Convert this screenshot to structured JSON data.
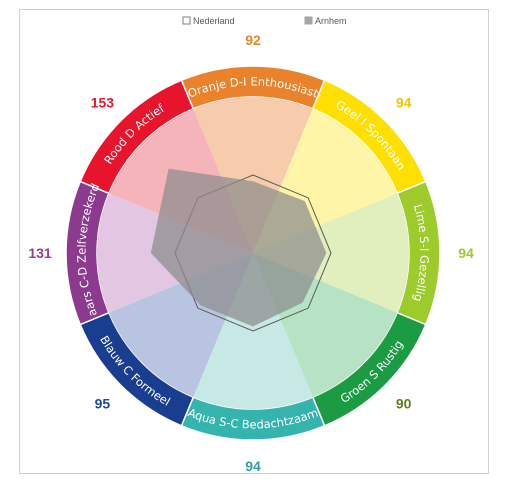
{
  "chart_data": {
    "type": "radar",
    "legend": [
      {
        "name": "Nederland",
        "marker": "outline-square"
      },
      {
        "name": "Arnhem",
        "marker": "gray-square"
      }
    ],
    "legend_position": "top",
    "categories": [
      {
        "label": "Oranje D-I Enthousiast",
        "color": "#E9822A",
        "light": "#F6CCAD",
        "value_color": "#E9822A"
      },
      {
        "label": "Geel I Spontaan",
        "color": "#FFDF00",
        "light": "#FFF5A8",
        "value_color": "#F4C300"
      },
      {
        "label": "Lime S-I Gezellig",
        "color": "#9CCB2B",
        "light": "#E1EEBD",
        "value_color": "#9CCB2B"
      },
      {
        "label": "Groen S Rustig",
        "color": "#1B9C43",
        "light": "#B5E3C4",
        "value_color": "#5E7D1F"
      },
      {
        "label": "Aqua S-C Bedachtzaam",
        "color": "#35B4AE",
        "light": "#C6E9E6",
        "value_color": "#2E9FA0"
      },
      {
        "label": "Blauw C Formeel",
        "color": "#193E8F",
        "light": "#B9C4E0",
        "value_color": "#1F4E8C"
      },
      {
        "label": "Paars C-D Zelfverzekerd",
        "color": "#8B3A8E",
        "light": "#E3C6E2",
        "value_color": "#9B3C8F"
      },
      {
        "label": "Rood D Actief",
        "color": "#E8142B",
        "light": "#F5B3BA",
        "value_color": "#E0192D"
      }
    ],
    "series": [
      {
        "name": "Nederland",
        "values": [
          100,
          100,
          100,
          100,
          100,
          100,
          100,
          100
        ]
      },
      {
        "name": "Arnhem",
        "values": [
          92,
          94,
          94,
          90,
          94,
          95,
          131,
          153
        ]
      }
    ],
    "value_labels": [
      "92",
      "94",
      "94",
      "90",
      "94",
      "95",
      "131",
      "153"
    ],
    "r_max": 200
  }
}
